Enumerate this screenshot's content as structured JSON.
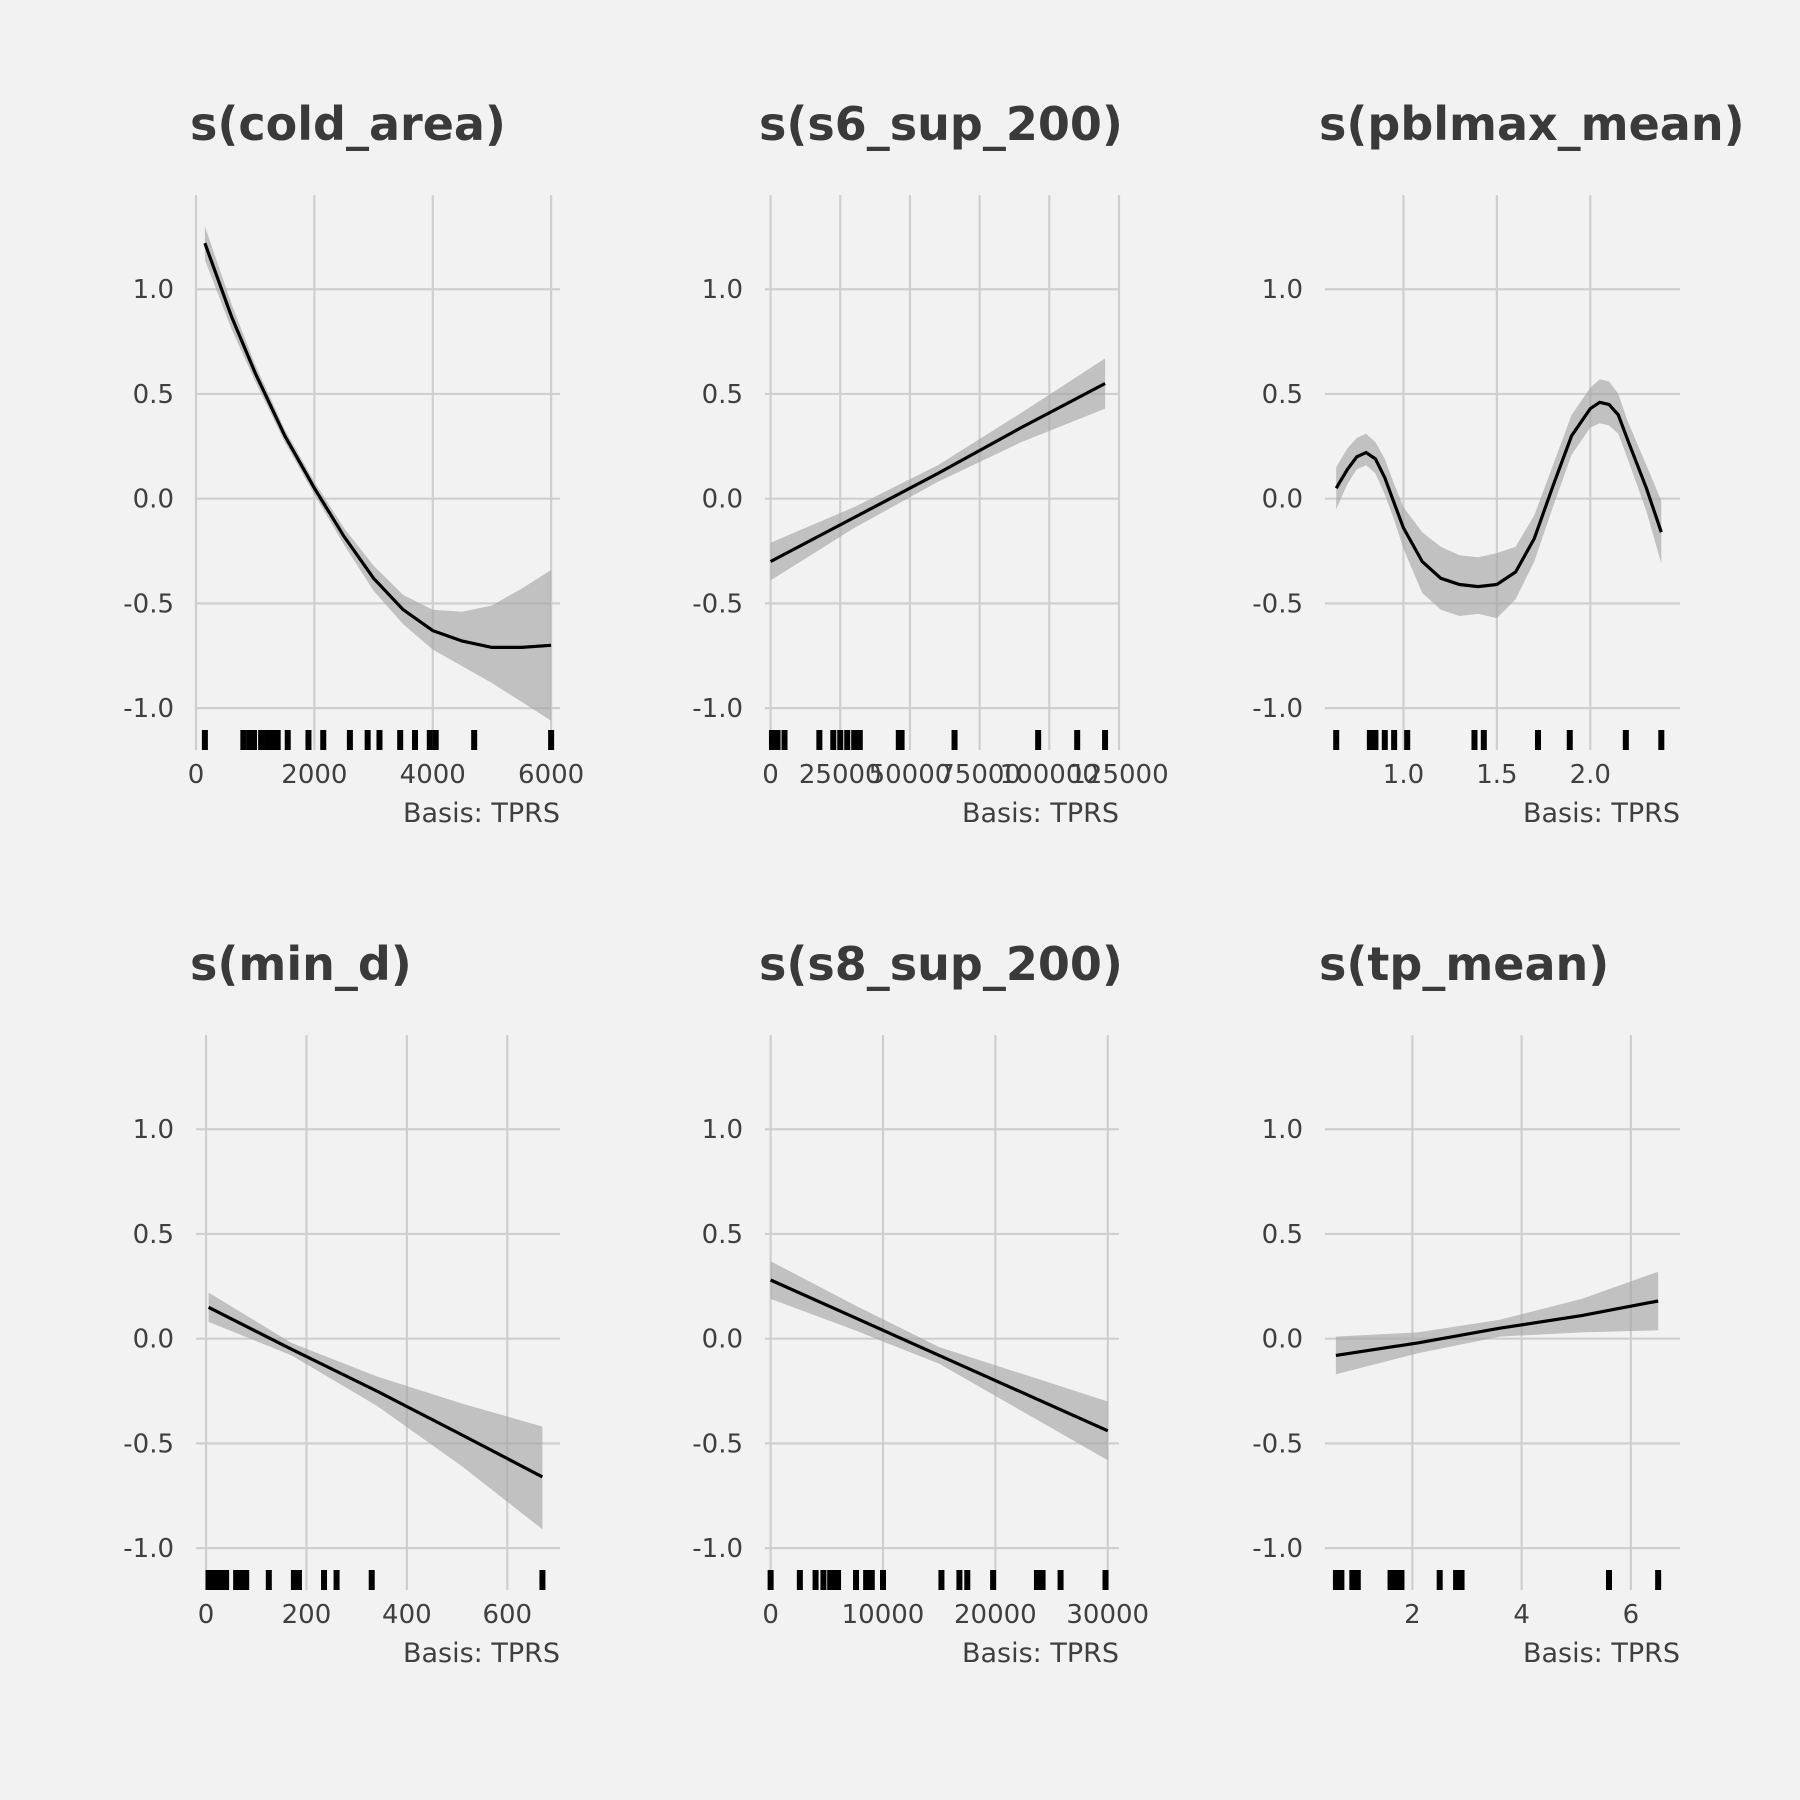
{
  "chart_data": [
    {
      "type": "line",
      "title": "s(cold_area)",
      "caption": "Basis: TPRS",
      "xlim": [
        0,
        6150
      ],
      "ylim": [
        -1.2,
        1.45
      ],
      "x_ticks": [
        0,
        2000,
        4000,
        6000
      ],
      "x_tick_labels": [
        "0",
        "2000",
        "4000",
        "6000"
      ],
      "y_ticks": [
        -1.0,
        -0.5,
        0.0,
        0.5,
        1.0
      ],
      "y_tick_labels": [
        "-1.0",
        "-0.5",
        "0.0",
        "0.5",
        "1.0"
      ],
      "series": [
        {
          "x": [
            150,
            600,
            1000,
            1500,
            2000,
            2500,
            3000,
            3500,
            4000,
            4500,
            5000,
            5500,
            6000
          ],
          "y": [
            1.22,
            0.87,
            0.6,
            0.3,
            0.05,
            -0.18,
            -0.38,
            -0.53,
            -0.63,
            -0.68,
            -0.71,
            -0.71,
            -0.7
          ],
          "lower": [
            1.14,
            0.81,
            0.56,
            0.27,
            0.02,
            -0.22,
            -0.44,
            -0.6,
            -0.72,
            -0.8,
            -0.88,
            -0.97,
            -1.06
          ],
          "upper": [
            1.3,
            0.93,
            0.64,
            0.33,
            0.08,
            -0.14,
            -0.32,
            -0.46,
            -0.53,
            -0.54,
            -0.51,
            -0.43,
            -0.34
          ]
        }
      ],
      "rug": [
        150,
        800,
        900,
        980,
        1100,
        1200,
        1300,
        1380,
        1550,
        1900,
        2150,
        2600,
        2900,
        3100,
        3450,
        3700,
        3950,
        4050,
        4700,
        6000
      ]
    },
    {
      "type": "line",
      "title": "s(s6_sup_200)",
      "caption": "Basis: TPRS",
      "xlim": [
        -2000,
        125000
      ],
      "ylim": [
        -1.2,
        1.45
      ],
      "x_ticks": [
        0,
        25000,
        50000,
        75000,
        100000,
        125000
      ],
      "x_tick_labels": [
        "0",
        "25000",
        "50000",
        "75000",
        "100000",
        "125000"
      ],
      "y_ticks": [
        -1.0,
        -0.5,
        0.0,
        0.5,
        1.0
      ],
      "y_tick_labels": [
        "-1.0",
        "-0.5",
        "0.0",
        "0.5",
        "1.0"
      ],
      "series": [
        {
          "x": [
            0,
            30000,
            60000,
            90000,
            120000
          ],
          "y": [
            -0.3,
            -0.09,
            0.12,
            0.34,
            0.55
          ],
          "lower": [
            -0.39,
            -0.14,
            0.08,
            0.27,
            0.43
          ],
          "upper": [
            -0.21,
            -0.04,
            0.16,
            0.41,
            0.67
          ]
        }
      ],
      "rug": [
        500,
        2500,
        5000,
        17500,
        22500,
        25000,
        27500,
        30000,
        32000,
        46000,
        47000,
        66000,
        96000,
        110000,
        120000
      ]
    },
    {
      "type": "line",
      "title": "s(pblmax_mean)",
      "caption": "Basis: TPRS",
      "xlim": [
        0.58,
        2.48
      ],
      "ylim": [
        -1.2,
        1.45
      ],
      "x_ticks": [
        1.0,
        1.5,
        2.0
      ],
      "x_tick_labels": [
        "1.0",
        "1.5",
        "2.0"
      ],
      "y_ticks": [
        -1.0,
        -0.5,
        0.0,
        0.5,
        1.0
      ],
      "y_tick_labels": [
        "-1.0",
        "-0.5",
        "0.0",
        "0.5",
        "1.0"
      ],
      "series": [
        {
          "x": [
            0.64,
            0.7,
            0.75,
            0.8,
            0.85,
            0.9,
            0.95,
            1.0,
            1.1,
            1.2,
            1.3,
            1.4,
            1.5,
            1.6,
            1.7,
            1.8,
            1.9,
            2.0,
            2.05,
            2.1,
            2.15,
            2.2,
            2.3,
            2.38
          ],
          "y": [
            0.05,
            0.14,
            0.2,
            0.22,
            0.19,
            0.1,
            -0.02,
            -0.14,
            -0.3,
            -0.38,
            -0.41,
            -0.42,
            -0.41,
            -0.35,
            -0.19,
            0.06,
            0.3,
            0.43,
            0.46,
            0.45,
            0.4,
            0.28,
            0.05,
            -0.16
          ],
          "lower": [
            -0.05,
            0.07,
            0.14,
            0.16,
            0.12,
            0.02,
            -0.1,
            -0.24,
            -0.45,
            -0.53,
            -0.56,
            -0.55,
            -0.57,
            -0.48,
            -0.3,
            -0.04,
            0.21,
            0.34,
            0.36,
            0.35,
            0.31,
            0.19,
            -0.06,
            -0.31
          ],
          "upper": [
            0.15,
            0.24,
            0.29,
            0.31,
            0.27,
            0.19,
            0.07,
            -0.04,
            -0.16,
            -0.23,
            -0.27,
            -0.28,
            -0.26,
            -0.23,
            -0.08,
            0.16,
            0.4,
            0.53,
            0.57,
            0.56,
            0.5,
            0.37,
            0.16,
            -0.01
          ]
        }
      ],
      "rug": [
        0.64,
        0.82,
        0.85,
        0.9,
        0.95,
        1.02,
        1.38,
        1.43,
        1.72,
        1.89,
        2.19,
        2.38
      ]
    },
    {
      "type": "line",
      "title": "s(min_d)",
      "caption": "Basis: TPRS",
      "xlim": [
        -20,
        705
      ],
      "ylim": [
        -1.2,
        1.45
      ],
      "x_ticks": [
        0,
        200,
        400,
        600
      ],
      "x_tick_labels": [
        "0",
        "200",
        "400",
        "600"
      ],
      "y_ticks": [
        -1.0,
        -0.5,
        0.0,
        0.5,
        1.0
      ],
      "y_tick_labels": [
        "-1.0",
        "-0.5",
        "0.0",
        "0.5",
        "1.0"
      ],
      "series": [
        {
          "x": [
            5,
            170,
            340,
            510,
            670
          ],
          "y": [
            0.15,
            -0.05,
            -0.25,
            -0.46,
            -0.66
          ],
          "lower": [
            0.08,
            -0.08,
            -0.32,
            -0.61,
            -0.91
          ],
          "upper": [
            0.22,
            -0.02,
            -0.18,
            -0.31,
            -0.42
          ]
        }
      ],
      "rug": [
        5,
        10,
        15,
        20,
        25,
        30,
        35,
        40,
        60,
        65,
        70,
        80,
        125,
        175,
        185,
        235,
        260,
        330,
        670
      ]
    },
    {
      "type": "line",
      "title": "s(s8_sup_200)",
      "caption": "Basis: TPRS",
      "xlim": [
        -500,
        31000
      ],
      "ylim": [
        -1.2,
        1.45
      ],
      "x_ticks": [
        0,
        10000,
        20000,
        30000
      ],
      "x_tick_labels": [
        "0",
        "10000",
        "20000",
        "30000"
      ],
      "y_ticks": [
        -1.0,
        -0.5,
        0.0,
        0.5,
        1.0
      ],
      "y_tick_labels": [
        "-1.0",
        "-0.5",
        "0.0",
        "0.5",
        "1.0"
      ],
      "series": [
        {
          "x": [
            0,
            7500,
            15000,
            22500,
            30000
          ],
          "y": [
            0.28,
            0.1,
            -0.08,
            -0.26,
            -0.44
          ],
          "lower": [
            0.19,
            0.04,
            -0.12,
            -0.35,
            -0.58
          ],
          "upper": [
            0.37,
            0.16,
            -0.04,
            -0.17,
            -0.3
          ]
        }
      ],
      "rug": [
        0,
        2600,
        4000,
        4700,
        5300,
        5700,
        6000,
        7600,
        8500,
        9000,
        10000,
        15200,
        16800,
        17500,
        19800,
        23700,
        24200,
        25800,
        29800
      ]
    },
    {
      "type": "line",
      "title": "s(tp_mean)",
      "caption": "Basis: TPRS",
      "xlim": [
        0.4,
        6.9
      ],
      "ylim": [
        -1.2,
        1.45
      ],
      "x_ticks": [
        2,
        4,
        6
      ],
      "x_tick_labels": [
        "2",
        "4",
        "6"
      ],
      "y_ticks": [
        -1.0,
        -0.5,
        0.0,
        0.5,
        1.0
      ],
      "y_tick_labels": [
        "-1.0",
        "-0.5",
        "0.0",
        "0.5",
        "1.0"
      ],
      "series": [
        {
          "x": [
            0.6,
            2.1,
            3.6,
            5.1,
            6.5
          ],
          "y": [
            -0.08,
            -0.02,
            0.05,
            0.11,
            0.18
          ],
          "lower": [
            -0.17,
            -0.07,
            0.01,
            0.03,
            0.04
          ],
          "upper": [
            0.01,
            0.03,
            0.09,
            0.19,
            0.32
          ]
        }
      ],
      "rug": [
        0.6,
        0.7,
        0.9,
        1.0,
        1.6,
        1.7,
        1.8,
        2.5,
        2.8,
        2.9,
        5.6,
        6.5
      ]
    }
  ]
}
